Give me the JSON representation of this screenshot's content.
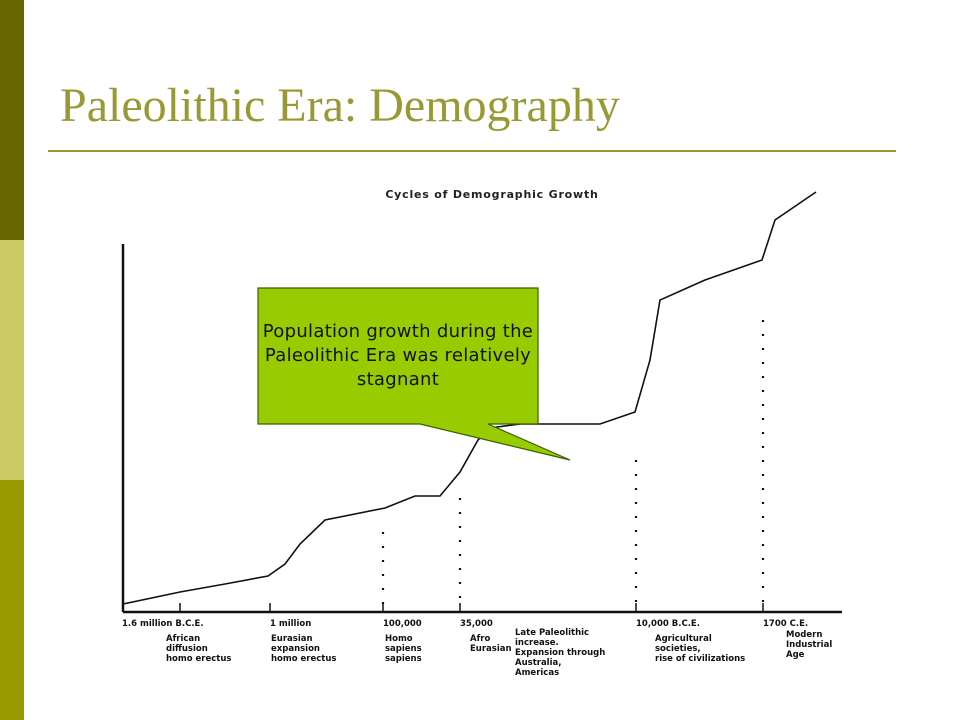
{
  "slide": {
    "title": "Paleolithic Era: Demography",
    "colors": {
      "title": "#999933",
      "bar_dark": "#666600",
      "bar_light": "#cccc66",
      "bar_mid": "#999900",
      "callout_fill": "#99cc00",
      "callout_border": "#3a5f00"
    }
  },
  "callout": {
    "text": "Population growth during the Paleolithic Era was relatively stagnant"
  },
  "chart_data": {
    "type": "line",
    "title": "Cycles of Demographic Growth",
    "xlabel": "",
    "ylabel": "",
    "grid": false,
    "legend": "none",
    "x_axis": "time (non-linear), 1.6 million B.C.E. to present",
    "ticks": [
      {
        "label": "1.6 million B.C.E."
      },
      {
        "label": "1 million"
      },
      {
        "label": "100,000"
      },
      {
        "label": "35,000"
      },
      {
        "label": "10,000 B.C.E."
      },
      {
        "label": "1700 C.E."
      }
    ],
    "annotations": [
      {
        "lines": [
          "African",
          "diffusion",
          "homo erectus"
        ]
      },
      {
        "lines": [
          "Eurasian",
          "expansion",
          "homo erectus"
        ]
      },
      {
        "lines": [
          "Homo",
          "sapiens",
          "sapiens"
        ]
      },
      {
        "lines": [
          "Afro",
          "Eurasian"
        ]
      },
      {
        "lines": [
          "Late Paleolithic",
          "increase.",
          "Expansion through",
          "Australia,",
          "Americas"
        ]
      },
      {
        "lines": [
          "Agricultural",
          "societies,",
          "rise of civilizations"
        ]
      },
      {
        "lines": [
          "Modern",
          "Industrial",
          "Age"
        ]
      }
    ],
    "series": [
      {
        "values": [
          0.02,
          0.05,
          0.07,
          0.09,
          0.12,
          0.17,
          0.23,
          0.26,
          0.29,
          0.29,
          0.35,
          0.43,
          0.46,
          0.47,
          0.47,
          0.47,
          0.5,
          0.63,
          0.78,
          0.83,
          0.88,
          0.98,
          1.05
        ]
      }
    ]
  }
}
